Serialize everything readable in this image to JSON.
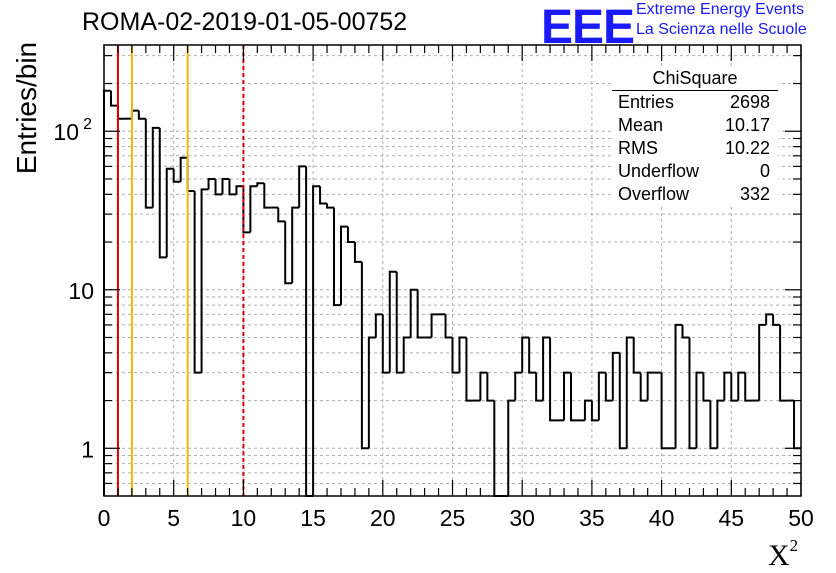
{
  "header": {
    "title": "ROMA-02-2019-01-05-00752",
    "logo_text": "EEE",
    "logo_line1": "Extreme Energy Events",
    "logo_line2": "La Scienza nelle Scuole"
  },
  "stats": {
    "title": "ChiSquare",
    "rows": [
      {
        "label": "Entries",
        "value": "2698"
      },
      {
        "label": "Mean",
        "value": "10.17"
      },
      {
        "label": "RMS",
        "value": "10.22"
      },
      {
        "label": "Underflow",
        "value": "0"
      },
      {
        "label": "Overflow",
        "value": "332"
      }
    ]
  },
  "chart_data": {
    "type": "histogram",
    "xlabel": "X",
    "xlabel_superscript": "2",
    "ylabel": "Entries/bin",
    "xlim": [
      0,
      50
    ],
    "ylim": [
      0.5,
      350
    ],
    "yscale": "log",
    "bin_width": 0.5,
    "grid": true,
    "x_ticks": [
      "0",
      "5",
      "10",
      "15",
      "20",
      "25",
      "30",
      "35",
      "40",
      "45",
      "50"
    ],
    "y_ticks": [
      {
        "value": 1,
        "label": "1"
      },
      {
        "value": 10,
        "label": "10"
      },
      {
        "value": 100,
        "label": "10",
        "exp": "2"
      }
    ],
    "vertical_lines": [
      {
        "x": 1,
        "color": "#e00000",
        "style": "solid"
      },
      {
        "x": 2,
        "color": "#f2b800",
        "style": "solid"
      },
      {
        "x": 6,
        "color": "#f2b800",
        "style": "solid"
      },
      {
        "x": 10,
        "color": "#e00000",
        "style": "dashed"
      }
    ],
    "values": [
      180,
      145,
      120,
      120,
      135,
      120,
      33,
      105,
      16,
      58,
      48,
      68,
      42,
      3,
      43,
      50,
      40,
      50,
      40,
      45,
      23,
      45,
      47,
      33,
      33,
      27,
      11,
      33,
      60,
      0,
      45,
      35,
      33,
      8,
      25,
      20,
      15,
      1,
      5,
      7,
      3,
      13,
      3,
      5,
      10,
      5,
      5,
      7,
      7,
      5,
      3,
      5,
      2,
      2,
      3,
      2,
      0,
      0,
      2,
      3,
      5,
      3,
      2,
      5,
      1.5,
      1.5,
      3,
      1.5,
      1.5,
      2,
      1.5,
      3,
      2,
      4,
      1,
      5,
      3,
      2,
      3,
      3,
      1,
      1,
      6,
      5,
      1,
      3,
      2,
      1,
      2,
      3,
      2,
      3,
      2,
      2,
      6,
      7,
      6,
      2,
      2,
      1
    ]
  }
}
